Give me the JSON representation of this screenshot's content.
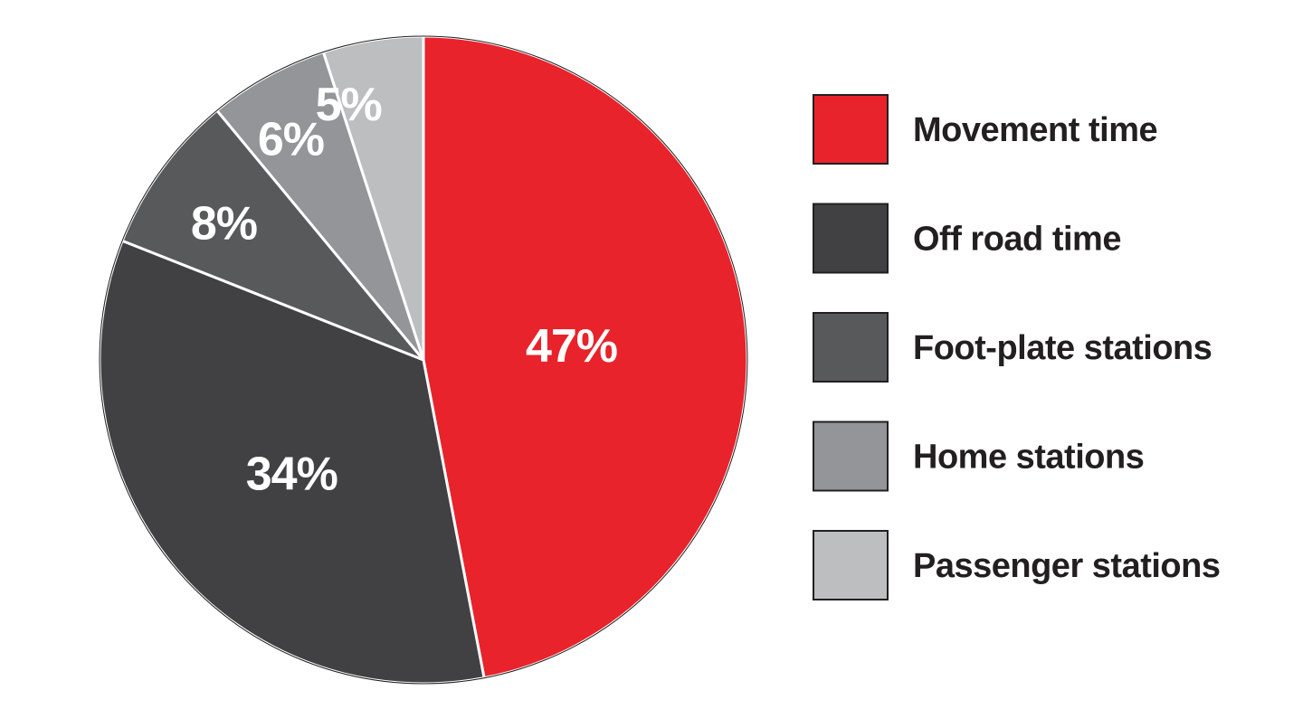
{
  "chart_data": {
    "type": "pie",
    "title": "",
    "legend_position": "right",
    "slices": [
      {
        "label": "Movement time",
        "value": 47,
        "value_label": "47%",
        "color": "#e8232b"
      },
      {
        "label": "Off road time",
        "value": 34,
        "value_label": "34%",
        "color": "#414042"
      },
      {
        "label": "Foot-plate stations",
        "value": 8,
        "value_label": "8%",
        "color": "#58595b"
      },
      {
        "label": "Home stations",
        "value": 6,
        "value_label": "6%",
        "color": "#939598"
      },
      {
        "label": "Passenger stations",
        "value": 5,
        "value_label": "5%",
        "color": "#bcbec0"
      }
    ]
  }
}
